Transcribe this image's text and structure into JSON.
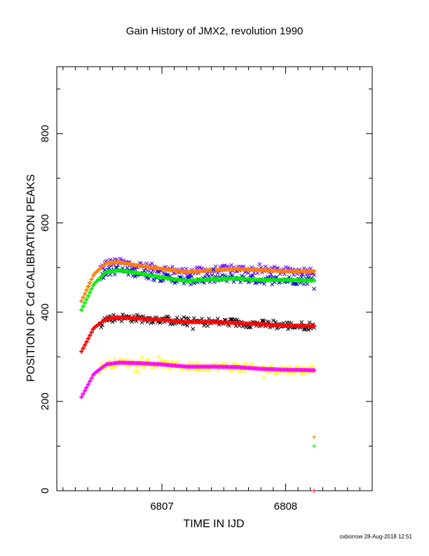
{
  "chart_data": {
    "type": "scatter",
    "title": "Gain History of JMX2, revolution 1990",
    "xlabel": "TIME IN IJD",
    "ylabel": "POSITION OF Cd CALIBRATION PEAKS",
    "xlim": [
      6806.15,
      6808.7
    ],
    "ylim": [
      0,
      950
    ],
    "x_ticks": [
      6807,
      6808
    ],
    "y_ticks": [
      0,
      200,
      400,
      600,
      800
    ],
    "x_start": 6806.35,
    "x_end": 6808.23,
    "series": [
      {
        "color": "#ff7f00",
        "fit_color": "#ff7f00",
        "scatter_color": "#6600ff",
        "x": [
          6806.35,
          6806.45,
          6806.55,
          6806.65,
          6806.8,
          6807.0,
          6807.2,
          6807.4,
          6807.6,
          6807.8,
          6808.0,
          6808.23
        ],
        "y": [
          425,
          485,
          510,
          512,
          505,
          497,
          490,
          494,
          497,
          494,
          492,
          492
        ]
      },
      {
        "color": "#00ee00",
        "fit_color": "#00ee00",
        "scatter_color": "#0000cc",
        "x": [
          6806.35,
          6806.45,
          6806.55,
          6806.65,
          6806.8,
          6807.0,
          6807.2,
          6807.4,
          6807.6,
          6807.8,
          6808.0,
          6808.23
        ],
        "y": [
          405,
          463,
          490,
          494,
          488,
          478,
          470,
          474,
          476,
          472,
          472,
          471
        ]
      },
      {
        "color": "#ff0000",
        "fit_color": "#ff0000",
        "scatter_color": "#000000",
        "x": [
          6806.35,
          6806.45,
          6806.55,
          6806.65,
          6806.8,
          6807.0,
          6807.2,
          6807.4,
          6807.6,
          6807.8,
          6808.0,
          6808.23
        ],
        "y": [
          312,
          365,
          385,
          388,
          386,
          383,
          378,
          378,
          376,
          373,
          370,
          369
        ]
      },
      {
        "color": "#ff00ff",
        "fit_color": "#ff00ff",
        "scatter_color": "#ffff00",
        "x": [
          6806.35,
          6806.45,
          6806.55,
          6806.65,
          6806.8,
          6807.0,
          6807.2,
          6807.4,
          6807.6,
          6807.8,
          6808.0,
          6808.23
        ],
        "y": [
          210,
          262,
          283,
          287,
          286,
          283,
          278,
          278,
          277,
          273,
          271,
          270
        ]
      }
    ],
    "extra_points": [
      {
        "x": 6808.23,
        "y": 120,
        "color": "#ff7f00"
      },
      {
        "x": 6808.23,
        "y": 100,
        "color": "#00ee00"
      },
      {
        "x": 6808.23,
        "y": 0,
        "color": "#ff0000"
      }
    ]
  },
  "footer": "oxborrow 28-Aug-2018 12:51"
}
